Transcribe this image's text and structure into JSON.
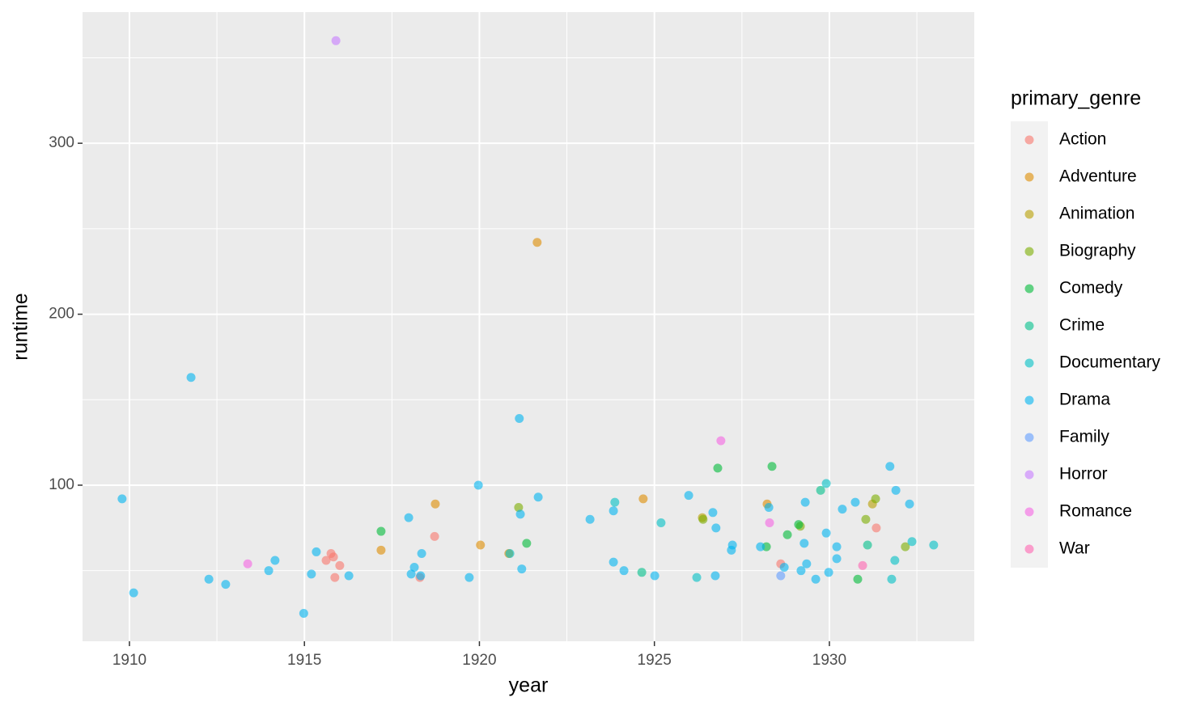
{
  "chart_data": {
    "type": "scatter",
    "x_label": "year",
    "y_label": "runtime",
    "legend_title": "primary_genre",
    "legend": "right",
    "grid": true,
    "opacity": 0.6,
    "xlim": [
      1908.66,
      1934.14
    ],
    "xticks": [
      1910,
      1915,
      1920,
      1925,
      1930
    ],
    "ylim": [
      8.7,
      376.7
    ],
    "yticks": [
      100,
      200,
      300
    ],
    "series": [
      {
        "name": "Action",
        "color": "#F8766D",
        "x": [
          1915.62,
          1915.76,
          1915.83,
          1916.01,
          1915.87,
          1918.3,
          1918.72,
          1928.61,
          1931.34
        ],
        "values": [
          56,
          60,
          58,
          53,
          46,
          46,
          70,
          54,
          75
        ]
      },
      {
        "name": "Adventure",
        "color": "#DE8C00",
        "x": [
          1917.19,
          1918.74,
          1920.03,
          1920.84,
          1921.65,
          1924.68,
          1928.22
        ],
        "values": [
          62,
          89,
          65,
          60,
          242,
          92,
          89
        ]
      },
      {
        "name": "Animation",
        "color": "#B79F00",
        "x": [
          1926.37,
          1931.23
        ],
        "values": [
          81,
          89
        ]
      },
      {
        "name": "Biography",
        "color": "#7CAE00",
        "x": [
          1921.12,
          1926.39,
          1931.32,
          1929.17,
          1931.04,
          1932.17
        ],
        "values": [
          87,
          80,
          92,
          76,
          80,
          64
        ]
      },
      {
        "name": "Comedy",
        "color": "#00BA38",
        "x": [
          1917.19,
          1921.35,
          1926.81,
          1928.36,
          1928.2,
          1928.8,
          1929.12,
          1930.81
        ],
        "values": [
          73,
          66,
          110,
          111,
          64,
          71,
          77,
          45
        ]
      },
      {
        "name": "Crime",
        "color": "#00C08B",
        "x": [
          1924.64,
          1929.75,
          1931.09
        ],
        "values": [
          49,
          97,
          65
        ]
      },
      {
        "name": "Documentary",
        "color": "#00BFC4",
        "x": [
          1923.87,
          1925.19,
          1926.21,
          1929.91,
          1931.78,
          1931.87,
          1932.36,
          1932.98,
          1920.87
        ],
        "values": [
          90,
          78,
          46,
          101,
          45,
          56,
          67,
          65,
          60
        ]
      },
      {
        "name": "Drama",
        "color": "#00B4F0",
        "x": [
          1909.79,
          1910.12,
          1911.76,
          1912.27,
          1912.75,
          1913.98,
          1914.16,
          1914.98,
          1915.2,
          1915.34,
          1916.27,
          1917.98,
          1918.05,
          1918.14,
          1918.32,
          1918.35,
          1919.71,
          1919.97,
          1921.14,
          1921.17,
          1921.21,
          1921.68,
          1923.16,
          1923.83,
          1923.83,
          1924.13,
          1925.01,
          1925.98,
          1926.67,
          1926.76,
          1926.74,
          1927.23,
          1927.2,
          1928.03,
          1928.27,
          1928.71,
          1929.28,
          1929.31,
          1929.35,
          1929.19,
          1929.61,
          1929.91,
          1929.98,
          1930.21,
          1930.21,
          1930.37,
          1930.74,
          1931.73,
          1931.9,
          1932.29
        ],
        "values": [
          92,
          37,
          163,
          45,
          42,
          50,
          56,
          25,
          48,
          61,
          47,
          81,
          48,
          52,
          47,
          60,
          46,
          100,
          139,
          83,
          51,
          93,
          80,
          85,
          55,
          50,
          47,
          94,
          84,
          75,
          47,
          65,
          62,
          64,
          87,
          52,
          66,
          90,
          54,
          50,
          45,
          72,
          49,
          64,
          57,
          86,
          90,
          111,
          97,
          89
        ]
      },
      {
        "name": "Family",
        "color": "#619CFF",
        "x": [
          1928.61
        ],
        "values": [
          47
        ]
      },
      {
        "name": "Horror",
        "color": "#C77CFF",
        "x": [
          1915.9
        ],
        "values": [
          360
        ]
      },
      {
        "name": "Romance",
        "color": "#F564E3",
        "x": [
          1913.38,
          1926.9,
          1928.29
        ],
        "values": [
          54,
          126,
          78
        ]
      },
      {
        "name": "War",
        "color": "#FF64B0",
        "x": [
          1930.95
        ],
        "values": [
          53
        ]
      }
    ]
  }
}
